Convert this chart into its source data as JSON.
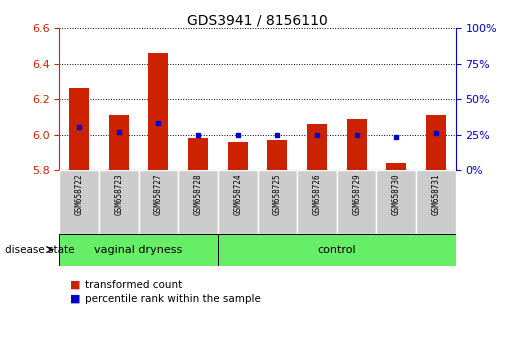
{
  "title": "GDS3941 / 8156110",
  "samples": [
    "GSM658722",
    "GSM658723",
    "GSM658727",
    "GSM658728",
    "GSM658724",
    "GSM658725",
    "GSM658726",
    "GSM658729",
    "GSM658730",
    "GSM658731"
  ],
  "bar_values": [
    6.26,
    6.11,
    6.46,
    5.98,
    5.96,
    5.97,
    6.06,
    6.09,
    5.84,
    6.11
  ],
  "bar_base": 5.8,
  "percentile_values": [
    30,
    27,
    33,
    25,
    25,
    25,
    25,
    25,
    23,
    26
  ],
  "ylim_left": [
    5.8,
    6.6
  ],
  "ylim_right": [
    0,
    100
  ],
  "yticks_left": [
    5.8,
    6.0,
    6.2,
    6.4,
    6.6
  ],
  "yticks_right": [
    0,
    25,
    50,
    75,
    100
  ],
  "bar_color": "#cc2200",
  "dot_color": "#0000cc",
  "background_color": "#ffffff",
  "group1_label": "vaginal dryness",
  "group2_label": "control",
  "group1_count": 4,
  "group2_count": 6,
  "group_bg_color": "#66ee66",
  "tick_area_color": "#cccccc",
  "legend_items": [
    "transformed count",
    "percentile rank within the sample"
  ],
  "disease_state_label": "disease state",
  "gridline_color": "#000000"
}
